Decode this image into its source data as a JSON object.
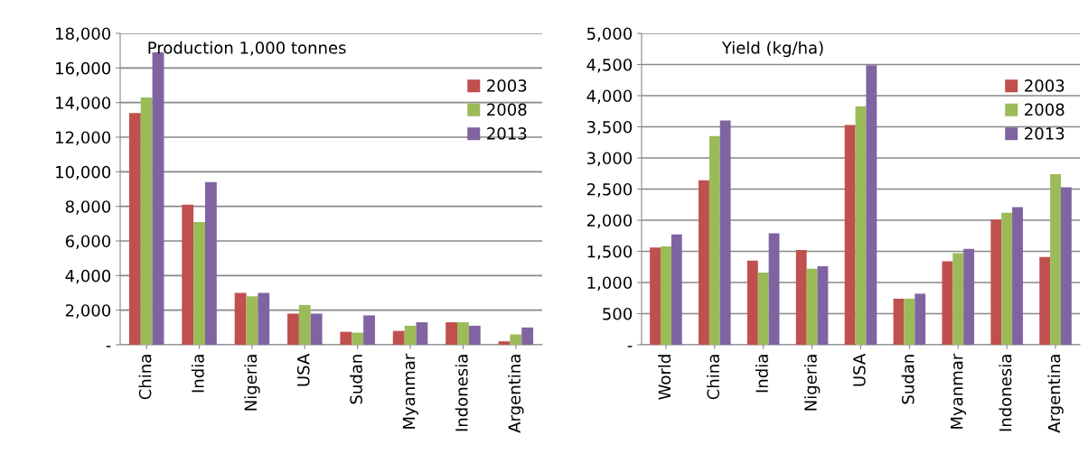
{
  "chart_data": [
    {
      "type": "bar",
      "title": "Production 1,000 tonnes",
      "categories": [
        "China",
        "India",
        "Nigeria",
        "USA",
        "Sudan",
        "Myanmar",
        "Indonesia",
        "Argentina"
      ],
      "series": [
        {
          "name": "2003",
          "color": "#c0504d",
          "values": [
            13400,
            8100,
            3000,
            1800,
            750,
            800,
            1300,
            200
          ]
        },
        {
          "name": "2008",
          "color": "#9bbb59",
          "values": [
            14300,
            7100,
            2800,
            2300,
            700,
            1100,
            1300,
            600
          ]
        },
        {
          "name": "2013",
          "color": "#8064a2",
          "values": [
            16900,
            9400,
            3000,
            1800,
            1700,
            1300,
            1100,
            1000
          ]
        }
      ],
      "ylim": [
        0,
        18000
      ],
      "yticks": [
        {
          "value": 0,
          "label": "-"
        },
        {
          "value": 2000,
          "label": "2,000"
        },
        {
          "value": 4000,
          "label": "4,000"
        },
        {
          "value": 6000,
          "label": "6,000"
        },
        {
          "value": 8000,
          "label": "8,000"
        },
        {
          "value": 10000,
          "label": "10,000"
        },
        {
          "value": 12000,
          "label": "12,000"
        },
        {
          "value": 14000,
          "label": "14,000"
        },
        {
          "value": 16000,
          "label": "16,000"
        },
        {
          "value": 18000,
          "label": "18,000"
        }
      ],
      "grid": "y",
      "legend": "top right"
    },
    {
      "type": "bar",
      "title": "Yield (kg/ha)",
      "categories": [
        "World",
        "China",
        "India",
        "Nigeria",
        "USA",
        "Sudan",
        "Myanmar",
        "Indonesia",
        "Argentina"
      ],
      "series": [
        {
          "name": "2003",
          "color": "#c0504d",
          "values": [
            1560,
            2640,
            1350,
            1520,
            3530,
            740,
            1340,
            2010,
            1410
          ]
        },
        {
          "name": "2008",
          "color": "#9bbb59",
          "values": [
            1580,
            3350,
            1160,
            1220,
            3830,
            740,
            1470,
            2120,
            2740
          ]
        },
        {
          "name": "2013",
          "color": "#8064a2",
          "values": [
            1770,
            3600,
            1790,
            1260,
            4490,
            820,
            1540,
            2210,
            2530
          ]
        }
      ],
      "ylim": [
        0,
        5000
      ],
      "yticks": [
        {
          "value": 0,
          "label": "-"
        },
        {
          "value": 500,
          "label": "500"
        },
        {
          "value": 1000,
          "label": "1,000"
        },
        {
          "value": 1500,
          "label": "1,500"
        },
        {
          "value": 2000,
          "label": "2,000"
        },
        {
          "value": 2500,
          "label": "2,500"
        },
        {
          "value": 3000,
          "label": "3,000"
        },
        {
          "value": 3500,
          "label": "3,500"
        },
        {
          "value": 4000,
          "label": "4,000"
        },
        {
          "value": 4500,
          "label": "4,500"
        },
        {
          "value": 5000,
          "label": "5,000"
        }
      ],
      "grid": "y",
      "legend": "top right"
    }
  ]
}
